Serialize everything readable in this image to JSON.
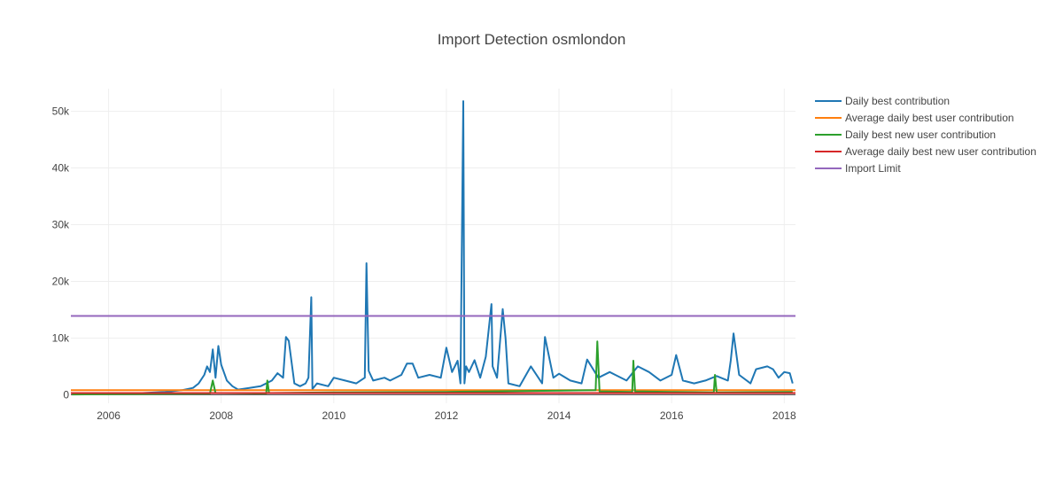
{
  "chart_data": {
    "type": "line",
    "title": "Import Detection osmlondon",
    "xlabel": "",
    "ylabel": "",
    "xlim": [
      2005.33,
      2018.2
    ],
    "ylim": [
      -1500,
      54000
    ],
    "grid": true,
    "legend_position": "top-right",
    "x_ticks": [
      2006,
      2008,
      2010,
      2012,
      2014,
      2016,
      2018
    ],
    "x_tick_labels": [
      "2006",
      "2008",
      "2010",
      "2012",
      "2014",
      "2016",
      "2018"
    ],
    "y_ticks": [
      0,
      10000,
      20000,
      30000,
      40000,
      50000
    ],
    "y_tick_labels": [
      "0",
      "10k",
      "20k",
      "30k",
      "40k",
      "50k"
    ],
    "series": [
      {
        "name": "Daily best contribution",
        "color": "#1f77b4",
        "x": [
          2005.35,
          2006.0,
          2006.6,
          2007.0,
          2007.3,
          2007.5,
          2007.6,
          2007.7,
          2007.75,
          2007.8,
          2007.85,
          2007.9,
          2007.95,
          2008.0,
          2008.1,
          2008.2,
          2008.3,
          2008.5,
          2008.7,
          2008.9,
          2009.0,
          2009.1,
          2009.15,
          2009.2,
          2009.3,
          2009.4,
          2009.5,
          2009.55,
          2009.6,
          2009.62,
          2009.7,
          2009.9,
          2010.0,
          2010.2,
          2010.4,
          2010.55,
          2010.58,
          2010.62,
          2010.7,
          2010.9,
          2011.0,
          2011.2,
          2011.3,
          2011.4,
          2011.5,
          2011.7,
          2011.9,
          2012.0,
          2012.1,
          2012.2,
          2012.25,
          2012.3,
          2012.32,
          2012.35,
          2012.4,
          2012.5,
          2012.6,
          2012.7,
          2012.8,
          2012.82,
          2012.9,
          2013.0,
          2013.05,
          2013.1,
          2013.3,
          2013.5,
          2013.7,
          2013.75,
          2013.9,
          2014.0,
          2014.2,
          2014.4,
          2014.5,
          2014.7,
          2014.9,
          2015.0,
          2015.2,
          2015.4,
          2015.6,
          2015.8,
          2016.0,
          2016.08,
          2016.2,
          2016.4,
          2016.6,
          2016.8,
          2017.0,
          2017.05,
          2017.1,
          2017.2,
          2017.4,
          2017.5,
          2017.7,
          2017.8,
          2017.9,
          2018.0,
          2018.1,
          2018.15
        ],
        "y": [
          100,
          150,
          300,
          500,
          800,
          1200,
          2000,
          3500,
          5000,
          4000,
          8000,
          3000,
          8600,
          5300,
          2500,
          1500,
          900,
          1200,
          1500,
          2500,
          3800,
          3000,
          10200,
          9500,
          2000,
          1500,
          2000,
          3000,
          17200,
          1000,
          2000,
          1500,
          3000,
          2500,
          2000,
          3000,
          23200,
          4200,
          2500,
          3000,
          2500,
          3500,
          5500,
          5500,
          3000,
          3500,
          3000,
          8300,
          4000,
          6000,
          2000,
          51800,
          2000,
          5000,
          4000,
          6100,
          3000,
          6700,
          16000,
          5000,
          3000,
          15100,
          10000,
          2000,
          1500,
          5000,
          2000,
          10200,
          3000,
          3700,
          2500,
          2000,
          6200,
          3000,
          4000,
          3500,
          2500,
          5000,
          4000,
          2500,
          3500,
          7000,
          2500,
          2000,
          2500,
          3300,
          2500,
          6000,
          10800,
          3500,
          2000,
          4500,
          5000,
          4500,
          3000,
          4000,
          3800,
          2000
        ]
      },
      {
        "name": "Average daily best user contribution",
        "color": "#ff7f0e",
        "x": [
          2005.33,
          2008.9,
          2008.9,
          2018.2
        ],
        "y": [
          800,
          800,
          800,
          800
        ]
      },
      {
        "name": "Daily best new user contribution",
        "color": "#2ca02c",
        "x": [
          2005.35,
          2007.8,
          2007.85,
          2007.9,
          2008.8,
          2008.82,
          2008.85,
          2010.0,
          2012.0,
          2014.65,
          2014.68,
          2014.72,
          2015.3,
          2015.32,
          2015.35,
          2016.0,
          2016.75,
          2016.77,
          2016.8,
          2018.15
        ],
        "y": [
          50,
          200,
          2500,
          300,
          200,
          2500,
          300,
          400,
          500,
          800,
          9400,
          600,
          500,
          6000,
          600,
          500,
          400,
          3500,
          400,
          500
        ]
      },
      {
        "name": "Average daily best new user contribution",
        "color": "#d62728",
        "x": [
          2005.33,
          2018.2
        ],
        "y": [
          300,
          300
        ]
      },
      {
        "name": "Import Limit",
        "color": "#9467bd",
        "x": [
          2005.33,
          2018.2
        ],
        "y": [
          13900,
          13900
        ]
      }
    ]
  }
}
